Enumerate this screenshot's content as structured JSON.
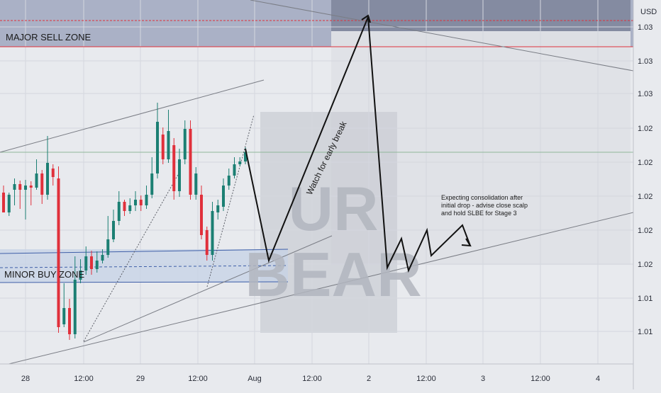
{
  "colors": {
    "background": "#e8eaee",
    "up": "#1b7f73",
    "down": "#e0303b",
    "sell_zone": "#9fa7be",
    "buy_zone": "#c5d2e6",
    "projection_box": "#dfe1e6",
    "sell_line": "#e0303b",
    "buy_zone_border": "#3f5fa8",
    "trendline": "#7a7d85",
    "projection_path": "#111111"
  },
  "chart_data": {
    "type": "candlestick",
    "currency": "USD",
    "x_ticks": [
      "28",
      "12:00",
      "29",
      "12:00",
      "Aug",
      "12:00",
      "2",
      "12:00",
      "3",
      "12:00",
      "4"
    ],
    "y_ticks": [
      "1.03",
      "1.03",
      "1.03",
      "1.02",
      "1.02",
      "1.02",
      "1.02",
      "1.02",
      "1.01",
      "1.01"
    ],
    "grid": true,
    "zones": [
      {
        "label": "MAJOR SELL ZONE",
        "kind": "sell"
      },
      {
        "label": "MINOR BUY ZONE",
        "kind": "buy"
      }
    ],
    "annotations": [
      {
        "text": "Watch for early break",
        "kind": "rotated"
      },
      {
        "text": [
          "Expecting consolidation after",
          "initial drop - advise close scalp",
          "and hold SLBE for Stage 3"
        ],
        "kind": "note"
      }
    ],
    "watermark": [
      "UR",
      "BEAR"
    ],
    "candles": [
      [
        272,
        300,
        262,
        300
      ],
      [
        300,
        275,
        272,
        305
      ],
      [
        268,
        260,
        252,
        290
      ],
      [
        260,
        268,
        255,
        295
      ],
      [
        268,
        262,
        254,
        310
      ],
      [
        262,
        265,
        256,
        290
      ],
      [
        265,
        245,
        225,
        268
      ],
      [
        245,
        275,
        240,
        288
      ],
      [
        275,
        230,
        192,
        282
      ],
      [
        238,
        250,
        232,
        262
      ],
      [
        252,
        462,
        235,
        470
      ],
      [
        458,
        435,
        400,
        462
      ],
      [
        435,
        472,
        422,
        480
      ],
      [
        472,
        395,
        362,
        478
      ],
      [
        395,
        382,
        366,
        400
      ],
      [
        382,
        362,
        348,
        388
      ],
      [
        362,
        380,
        354,
        388
      ],
      [
        380,
        368,
        355,
        385
      ],
      [
        368,
        360,
        352,
        372
      ],
      [
        360,
        338,
        305,
        364
      ],
      [
        338,
        312,
        296,
        342
      ],
      [
        312,
        285,
        270,
        318
      ],
      [
        285,
        298,
        282,
        305
      ],
      [
        298,
        290,
        280,
        302
      ],
      [
        290,
        282,
        270,
        298
      ],
      [
        282,
        290,
        276,
        298
      ],
      [
        290,
        275,
        262,
        295
      ],
      [
        275,
        245,
        222,
        280
      ],
      [
        245,
        172,
        145,
        252
      ],
      [
        190,
        225,
        180,
        232
      ],
      [
        225,
        185,
        155,
        230
      ],
      [
        205,
        270,
        195,
        282
      ],
      [
        270,
        225,
        210,
        278
      ],
      [
        225,
        182,
        170,
        232
      ],
      [
        182,
        275,
        170,
        282
      ],
      [
        275,
        245,
        236,
        282
      ],
      [
        275,
        332,
        262,
        338
      ],
      [
        325,
        360,
        320,
        368
      ],
      [
        360,
        298,
        285,
        368
      ],
      [
        300,
        290,
        282,
        310
      ],
      [
        292,
        262,
        252,
        298
      ],
      [
        262,
        248,
        238,
        268
      ],
      [
        248,
        232,
        222,
        252
      ],
      [
        232,
        228,
        222,
        235
      ],
      [
        228,
        215,
        208,
        232
      ]
    ]
  }
}
